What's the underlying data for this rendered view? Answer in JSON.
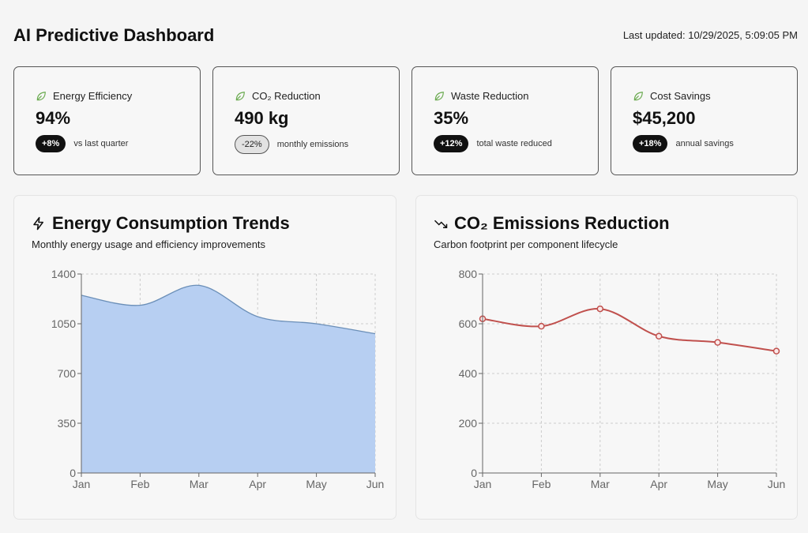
{
  "header": {
    "title": "AI Predictive Dashboard",
    "last_updated": "Last updated: 10/29/2025, 5:09:05 PM"
  },
  "cards": [
    {
      "icon": "leaf-icon",
      "label": "Energy Efficiency",
      "value": "94%",
      "badge": "+8%",
      "badge_style": "dark",
      "note": "vs last quarter"
    },
    {
      "icon": "leaf-icon",
      "label": "CO₂ Reduction",
      "value": "490 kg",
      "badge": "-22%",
      "badge_style": "neutral",
      "note": "monthly emissions"
    },
    {
      "icon": "leaf-icon",
      "label": "Waste Reduction",
      "value": "35%",
      "badge": "+12%",
      "badge_style": "dark",
      "note": "total waste reduced"
    },
    {
      "icon": "leaf-icon",
      "label": "Cost Savings",
      "value": "$45,200",
      "badge": "+18%",
      "badge_style": "dark",
      "note": "annual savings"
    }
  ],
  "colors": {
    "leaf": "#6aaa4f",
    "area_fill": "#b7cff2",
    "area_line": "#6b8fb8",
    "co2_line": "#c0504d"
  },
  "chart_data": [
    {
      "type": "area",
      "title": "Energy Consumption Trends",
      "subtitle": "Monthly energy usage and efficiency improvements",
      "icon": "lightning-icon",
      "categories": [
        "Jan",
        "Feb",
        "Mar",
        "Apr",
        "May",
        "Jun"
      ],
      "values": [
        1250,
        1180,
        1320,
        1100,
        1050,
        980
      ],
      "ylim": [
        0,
        1400
      ],
      "yticks": [
        "0",
        "350",
        "700",
        "1050",
        "1400"
      ],
      "grid": true
    },
    {
      "type": "line",
      "title": "CO₂ Emissions Reduction",
      "subtitle": "Carbon footprint per component lifecycle",
      "icon": "trending-down-icon",
      "categories": [
        "Jan",
        "Feb",
        "Mar",
        "Apr",
        "May",
        "Jun"
      ],
      "values": [
        620,
        590,
        660,
        550,
        525,
        490
      ],
      "ylim": [
        0,
        800
      ],
      "yticks": [
        "0",
        "200",
        "400",
        "600",
        "800"
      ],
      "grid": true
    }
  ]
}
